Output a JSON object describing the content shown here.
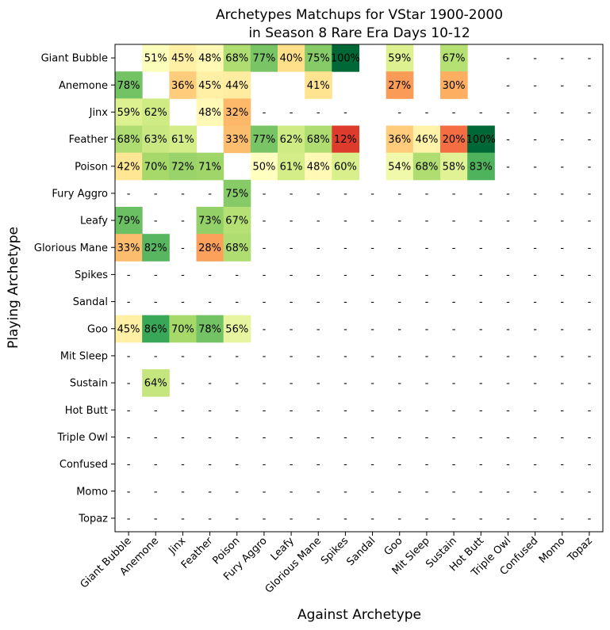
{
  "chart_data": {
    "type": "heatmap",
    "title": [
      "Archetypes Matchups for VStar 1900-2000",
      "in Season 8 Rare Era Days 10-12"
    ],
    "xlabel": "Against Archetype",
    "ylabel": "Playing Archetype",
    "rows": [
      "Giant Bubble",
      "Anemone",
      "Jinx",
      "Feather",
      "Poison",
      "Fury Aggro",
      "Leafy",
      "Glorious Mane",
      "Spikes",
      "Sandal",
      "Goo",
      "Mit Sleep",
      "Sustain",
      "Hot Butt",
      "Triple Owl",
      "Confused",
      "Momo",
      "Topaz"
    ],
    "columns": [
      "Giant Bubble",
      "Anemone",
      "Jinx",
      "Feather",
      "Poison",
      "Fury Aggro",
      "Leafy",
      "Glorious Mane",
      "Spikes",
      "Sandal",
      "Goo",
      "Mit Sleep",
      "Sustain",
      "Hot Butt",
      "Triple Owl",
      "Confused",
      "Momo",
      "Topaz"
    ],
    "missing_symbol": "-",
    "color_scale": "red-yellow-green",
    "values": [
      [
        null,
        51,
        45,
        48,
        68,
        77,
        40,
        75,
        100,
        null,
        59,
        null,
        67,
        null,
        null,
        null,
        null,
        null
      ],
      [
        78,
        null,
        36,
        45,
        44,
        null,
        null,
        41,
        null,
        null,
        27,
        null,
        30,
        null,
        null,
        null,
        null,
        null
      ],
      [
        59,
        62,
        null,
        48,
        32,
        null,
        null,
        null,
        null,
        null,
        null,
        null,
        null,
        null,
        null,
        null,
        null,
        null
      ],
      [
        68,
        63,
        61,
        null,
        33,
        77,
        62,
        68,
        12,
        null,
        36,
        46,
        20,
        100,
        null,
        null,
        null,
        null
      ],
      [
        42,
        70,
        72,
        71,
        null,
        50,
        61,
        48,
        60,
        null,
        54,
        68,
        58,
        83,
        null,
        null,
        null,
        null
      ],
      [
        null,
        null,
        null,
        null,
        75,
        null,
        null,
        null,
        null,
        null,
        null,
        null,
        null,
        null,
        null,
        null,
        null,
        null
      ],
      [
        79,
        null,
        null,
        73,
        67,
        null,
        null,
        null,
        null,
        null,
        null,
        null,
        null,
        null,
        null,
        null,
        null,
        null
      ],
      [
        33,
        82,
        null,
        28,
        68,
        null,
        null,
        null,
        null,
        null,
        null,
        null,
        null,
        null,
        null,
        null,
        null,
        null
      ],
      [
        null,
        null,
        null,
        null,
        null,
        null,
        null,
        null,
        null,
        null,
        null,
        null,
        null,
        null,
        null,
        null,
        null,
        null
      ],
      [
        null,
        null,
        null,
        null,
        null,
        null,
        null,
        null,
        null,
        null,
        null,
        null,
        null,
        null,
        null,
        null,
        null,
        null
      ],
      [
        45,
        86,
        70,
        78,
        56,
        null,
        null,
        null,
        null,
        null,
        null,
        null,
        null,
        null,
        null,
        null,
        null,
        null
      ],
      [
        null,
        null,
        null,
        null,
        null,
        null,
        null,
        null,
        null,
        null,
        null,
        null,
        null,
        null,
        null,
        null,
        null,
        null
      ],
      [
        null,
        64,
        null,
        null,
        null,
        null,
        null,
        null,
        null,
        null,
        null,
        null,
        null,
        null,
        null,
        null,
        null,
        null
      ],
      [
        null,
        null,
        null,
        null,
        null,
        null,
        null,
        null,
        null,
        null,
        null,
        null,
        null,
        null,
        null,
        null,
        null,
        null
      ],
      [
        null,
        null,
        null,
        null,
        null,
        null,
        null,
        null,
        null,
        null,
        null,
        null,
        null,
        null,
        null,
        null,
        null,
        null
      ],
      [
        null,
        null,
        null,
        null,
        null,
        null,
        null,
        null,
        null,
        null,
        null,
        null,
        null,
        null,
        null,
        null,
        null,
        null
      ],
      [
        null,
        null,
        null,
        null,
        null,
        null,
        null,
        null,
        null,
        null,
        null,
        null,
        null,
        null,
        null,
        null,
        null,
        null
      ],
      [
        null,
        null,
        null,
        null,
        null,
        null,
        null,
        null,
        null,
        null,
        null,
        null,
        null,
        null,
        null,
        null,
        null,
        null
      ]
    ],
    "blank_cells": [
      [
        0,
        9
      ],
      [
        1,
        9
      ],
      [
        2,
        9
      ],
      [
        3,
        9
      ],
      [
        4,
        9
      ],
      [
        0,
        11
      ],
      [
        1,
        11
      ],
      [
        0,
        13
      ],
      [
        1,
        13
      ],
      [
        1,
        5
      ],
      [
        1,
        6
      ],
      [
        1,
        8
      ],
      [
        2,
        2
      ],
      [
        0,
        0
      ],
      [
        1,
        1
      ],
      [
        3,
        3
      ],
      [
        4,
        4
      ]
    ]
  }
}
